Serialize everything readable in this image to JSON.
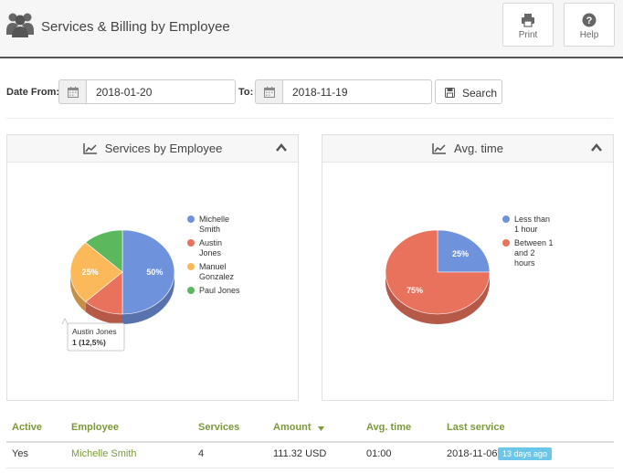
{
  "header": {
    "title": "Services & Billing by Employee",
    "print_label": "Print",
    "help_label": "Help"
  },
  "filter": {
    "date_from_label": "Date From:",
    "date_from_value": "2018-01-20",
    "to_label": "To:",
    "date_to_value": "2018-11-19",
    "search_label": "Search"
  },
  "panels": {
    "services_title": "Services by Employee",
    "avg_title": "Avg. time"
  },
  "tooltip": {
    "name": "Austin Jones",
    "value": "1 (12,5%)"
  },
  "colors": {
    "blue": "#6f92dd",
    "red": "#e9725d",
    "orange": "#fcb95a",
    "green": "#5cb85c",
    "accent_green": "#7a9a3a",
    "badge": "#6cc6e8"
  },
  "chart_data": [
    {
      "type": "pie",
      "title": "Services by Employee",
      "series": [
        {
          "name": "Michelle Smith",
          "value": 4,
          "percent": 50,
          "label": "50%",
          "color": "#6f92dd"
        },
        {
          "name": "Austin Jones",
          "value": 1,
          "percent": 12.5,
          "label": "",
          "color": "#e9725d"
        },
        {
          "name": "Manuel Gonzalez",
          "value": 2,
          "percent": 25,
          "label": "25%",
          "color": "#fcb95a"
        },
        {
          "name": "Paul Jones",
          "value": 1,
          "percent": 12.5,
          "label": "",
          "color": "#5cb85c"
        }
      ],
      "legend_lines": [
        [
          "Michelle",
          "Smith"
        ],
        [
          "Austin",
          "Jones"
        ],
        [
          "Manuel",
          "Gonzalez"
        ],
        [
          "Paul Jones"
        ]
      ],
      "legend": "right"
    },
    {
      "type": "pie",
      "title": "Avg. time",
      "series": [
        {
          "name": "Less than 1 hour",
          "percent": 25,
          "label": "25%",
          "color": "#6f92dd"
        },
        {
          "name": "Between 1 and 2 hours",
          "percent": 75,
          "label": "75%",
          "color": "#e9725d"
        }
      ],
      "legend_lines": [
        [
          "Less than",
          "1 hour"
        ],
        [
          "Between 1",
          "and 2",
          "hours"
        ]
      ],
      "legend": "right"
    }
  ],
  "table": {
    "columns": [
      "Active",
      "Employee",
      "Services",
      "Amount",
      "Avg. time",
      "Last service"
    ],
    "rows": [
      {
        "active": "Yes",
        "employee": "Michelle Smith",
        "services": "4",
        "amount": "111.32 USD",
        "avg_time": "01:00",
        "last_service": "2018-11-06",
        "badge": "13 days ago"
      }
    ]
  }
}
